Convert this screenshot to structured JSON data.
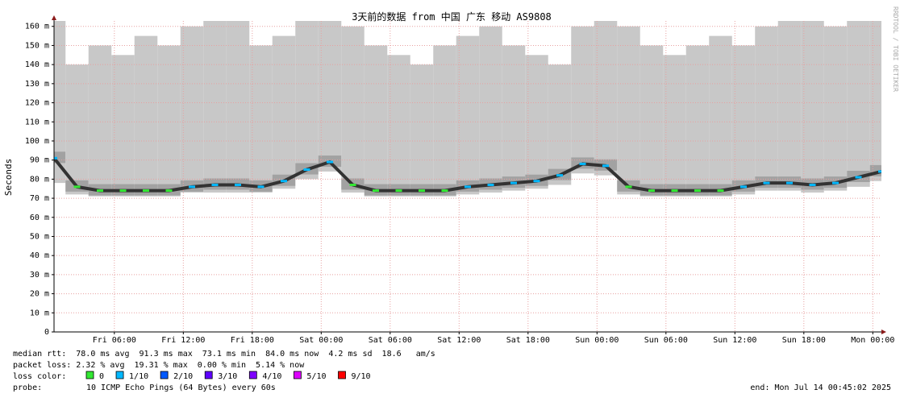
{
  "chart_data": {
    "type": "smokeping",
    "title": "3天前的数据 from 中国 广东 移动 AS9808",
    "y_label": "Seconds",
    "watermark": "RRDTOOL / TOBI OETIKER",
    "xlim": [
      0,
      72
    ],
    "xticks": [
      {
        "value": 5.25,
        "label": "Fri 06:00"
      },
      {
        "value": 11.25,
        "label": "Fri 12:00"
      },
      {
        "value": 17.25,
        "label": "Fri 18:00"
      },
      {
        "value": 23.25,
        "label": "Sat 00:00"
      },
      {
        "value": 29.25,
        "label": "Sat 06:00"
      },
      {
        "value": 35.25,
        "label": "Sat 12:00"
      },
      {
        "value": 41.25,
        "label": "Sat 18:00"
      },
      {
        "value": 47.25,
        "label": "Sun 00:00"
      },
      {
        "value": 53.25,
        "label": "Sun 06:00"
      },
      {
        "value": 59.25,
        "label": "Sun 12:00"
      },
      {
        "value": 65.25,
        "label": "Sun 18:00"
      },
      {
        "value": 71.25,
        "label": "Mon 00:00"
      }
    ],
    "ylim": [
      0,
      0.162
    ],
    "yticks": [
      0,
      {
        "value": 0.01,
        "label": "10 m"
      },
      {
        "value": 0.02,
        "label": "20 m"
      },
      {
        "value": 0.03,
        "label": "30 m"
      },
      {
        "value": 0.04,
        "label": "40 m"
      },
      {
        "value": 0.05,
        "label": "50 m"
      },
      {
        "value": 0.06,
        "label": "60 m"
      },
      {
        "value": 0.07,
        "label": "70 m"
      },
      {
        "value": 0.08,
        "label": "80 m"
      },
      {
        "value": 0.09,
        "label": "90 m"
      },
      {
        "value": 0.1,
        "label": "100 m"
      },
      {
        "value": 0.11,
        "label": "110 m"
      },
      {
        "value": 0.12,
        "label": "120 m"
      },
      {
        "value": 0.13,
        "label": "130 m"
      },
      {
        "value": 0.14,
        "label": "140 m"
      },
      {
        "value": 0.15,
        "label": "150 m"
      },
      {
        "value": 0.16,
        "label": "160 m"
      }
    ],
    "grid": true,
    "grid_color": "#e8a0a0",
    "smoke_color": "#c8c8c8",
    "x": [
      0,
      2,
      4,
      6,
      8,
      10,
      12,
      14,
      16,
      18,
      20,
      22,
      24,
      26,
      28,
      30,
      32,
      34,
      36,
      38,
      40,
      42,
      44,
      46,
      48,
      50,
      52,
      54,
      56,
      58,
      60,
      62,
      64,
      66,
      68,
      70,
      72
    ],
    "median": [
      0.091,
      0.076,
      0.074,
      0.074,
      0.074,
      0.074,
      0.076,
      0.077,
      0.077,
      0.076,
      0.079,
      0.085,
      0.089,
      0.077,
      0.074,
      0.074,
      0.074,
      0.074,
      0.076,
      0.077,
      0.078,
      0.079,
      0.082,
      0.088,
      0.087,
      0.076,
      0.074,
      0.074,
      0.074,
      0.074,
      0.076,
      0.078,
      0.078,
      0.077,
      0.078,
      0.081,
      0.084
    ],
    "median_colors": [
      "#00b8ff",
      "#33e833",
      "#33e833",
      "#33e833",
      "#33e833",
      "#33e833",
      "#00b8ff",
      "#00b8ff",
      "#00b8ff",
      "#00b8ff",
      "#00b8ff",
      "#00b8ff",
      "#00b8ff",
      "#33e833",
      "#33e833",
      "#33e833",
      "#33e833",
      "#33e833",
      "#00b8ff",
      "#00b8ff",
      "#00b8ff",
      "#00b8ff",
      "#00b8ff",
      "#00b8ff",
      "#00b8ff",
      "#33e833",
      "#33e833",
      "#33e833",
      "#33e833",
      "#33e833",
      "#00b8ff",
      "#00b8ff",
      "#00b8ff",
      "#00b8ff",
      "#00b8ff",
      "#00b8ff",
      "#00b8ff"
    ],
    "smoke_low": [
      0.078,
      0.072,
      0.071,
      0.071,
      0.071,
      0.071,
      0.073,
      0.073,
      0.073,
      0.073,
      0.075,
      0.08,
      0.084,
      0.073,
      0.071,
      0.071,
      0.071,
      0.071,
      0.072,
      0.073,
      0.074,
      0.075,
      0.077,
      0.083,
      0.082,
      0.072,
      0.071,
      0.071,
      0.071,
      0.071,
      0.072,
      0.074,
      0.074,
      0.073,
      0.074,
      0.076,
      0.079
    ],
    "smoke_high": [
      0.165,
      0.14,
      0.15,
      0.145,
      0.155,
      0.15,
      0.16,
      0.165,
      0.165,
      0.15,
      0.155,
      0.165,
      0.165,
      0.16,
      0.15,
      0.145,
      0.14,
      0.15,
      0.155,
      0.16,
      0.15,
      0.145,
      0.14,
      0.16,
      0.165,
      0.16,
      0.15,
      0.145,
      0.15,
      0.155,
      0.15,
      0.16,
      0.165,
      0.165,
      0.16,
      0.165,
      0.165
    ],
    "stats": [
      "median rtt:  78.0 ms avg  91.3 ms max  73.1 ms min  84.0 ms now  4.2 ms sd  18.6   am/s",
      "packet loss: 2.32 % avg  19.31 % max  0.00 % min  5.14 % now"
    ],
    "loss_legend_label": "loss color:",
    "loss_legend": [
      {
        "name": "0",
        "color": "#33e833"
      },
      {
        "name": "1/10",
        "color": "#00b8ff"
      },
      {
        "name": "2/10",
        "color": "#0059ff"
      },
      {
        "name": "3/10",
        "color": "#5e00ff"
      },
      {
        "name": "4/10",
        "color": "#7e00ff"
      },
      {
        "name": "5/10",
        "color": "#dd00ff"
      },
      {
        "name": "9/10",
        "color": "#ff0000"
      }
    ],
    "probe_label": "probe:",
    "probe": "10 ICMP Echo Pings (64 Bytes) every 60s",
    "end": "end: Mon Jul 14 00:45:02 2025"
  }
}
